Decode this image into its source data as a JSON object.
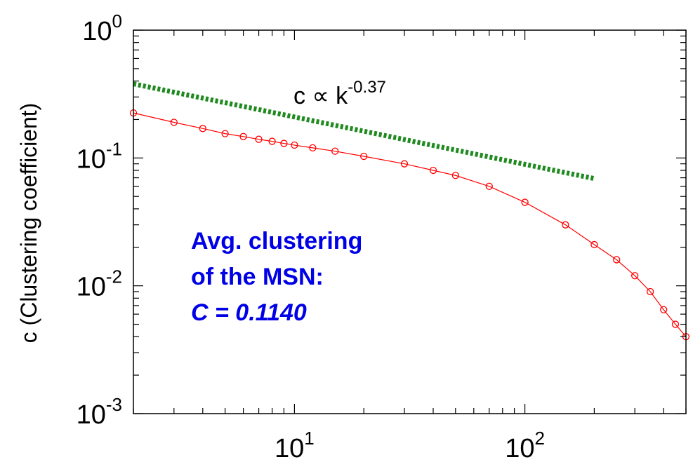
{
  "chart_data": {
    "type": "scatter",
    "xscale": "log",
    "yscale": "log",
    "xlim": [
      2,
      500
    ],
    "ylim": [
      0.001,
      1
    ],
    "grid": false,
    "ylabel": "c (Clustering coefficient)",
    "xlabel": "",
    "x_ticks": [
      {
        "value": 10,
        "base": "10",
        "exp": "1"
      },
      {
        "value": 100,
        "base": "10",
        "exp": "2"
      }
    ],
    "y_ticks": [
      {
        "value": 1,
        "base": "10",
        "exp": "0"
      },
      {
        "value": 0.1,
        "base": "10",
        "exp": "-1"
      },
      {
        "value": 0.01,
        "base": "10",
        "exp": "-2"
      },
      {
        "value": 0.001,
        "base": "10",
        "exp": "-3"
      }
    ],
    "series": [
      {
        "marker": "circle",
        "color": "#ff0000",
        "points": [
          [
            2,
            0.225
          ],
          [
            3,
            0.19
          ],
          [
            4,
            0.17
          ],
          [
            5,
            0.155
          ],
          [
            6,
            0.147
          ],
          [
            7,
            0.14
          ],
          [
            8,
            0.135
          ],
          [
            9,
            0.13
          ],
          [
            10,
            0.126
          ],
          [
            12,
            0.12
          ],
          [
            15,
            0.113
          ],
          [
            20,
            0.103
          ],
          [
            30,
            0.09
          ],
          [
            40,
            0.08
          ],
          [
            50,
            0.073
          ],
          [
            70,
            0.06
          ],
          [
            100,
            0.045
          ],
          [
            150,
            0.03
          ],
          [
            200,
            0.021
          ],
          [
            250,
            0.016
          ],
          [
            300,
            0.012
          ],
          [
            350,
            0.009
          ],
          [
            400,
            0.0065
          ],
          [
            450,
            0.005
          ],
          [
            500,
            0.004
          ]
        ]
      },
      {
        "marker": "dotted-line",
        "color": "#1f8a1f",
        "points": [
          [
            2,
            0.38
          ],
          [
            200,
            0.069
          ]
        ]
      }
    ],
    "fit_label": {
      "text": "c ∝ k",
      "exp": "-0.37"
    },
    "annotation": {
      "line1": "Avg. clustering",
      "line2": "of the MSN:",
      "line3": "C = 0.1140"
    }
  }
}
